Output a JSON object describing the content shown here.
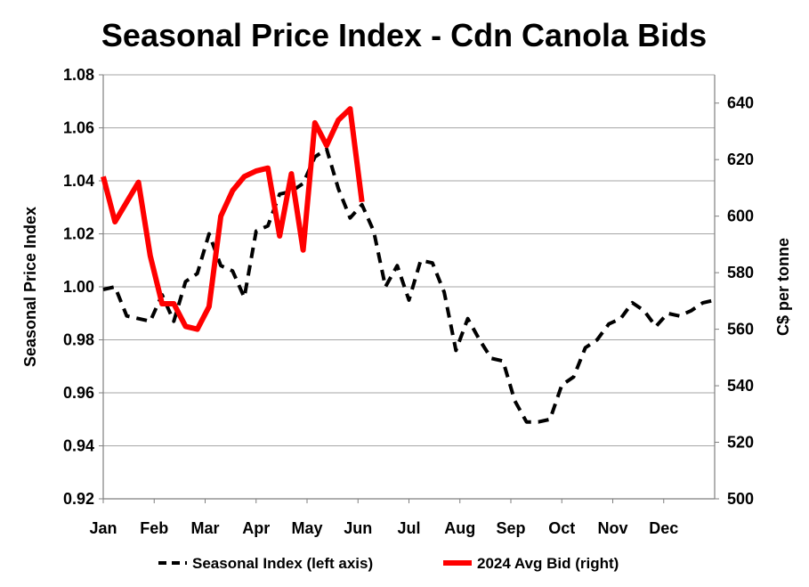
{
  "chart_data": {
    "type": "line",
    "title": "Seasonal Price Index - Cdn Canola Bids",
    "xlabel": "",
    "ylabel": "Seasonal Price Index",
    "y2label": "C$ per tonne",
    "ylim": [
      0.92,
      1.08
    ],
    "yticks": [
      "0.92",
      "0.94",
      "0.96",
      "0.98",
      "1.00",
      "1.02",
      "1.04",
      "1.06",
      "1.08"
    ],
    "y2lim": [
      500,
      650
    ],
    "y2ticks": [
      "500",
      "520",
      "540",
      "560",
      "580",
      "600",
      "620",
      "640"
    ],
    "months": [
      "Jan",
      "Feb",
      "Mar",
      "Apr",
      "May",
      "Jun",
      "Jul",
      "Aug",
      "Sep",
      "Oct",
      "Nov",
      "Dec"
    ],
    "week_range": [
      1,
      53
    ],
    "grid": "horizontal",
    "legend_position": "bottom",
    "series": [
      {
        "name": "Seasonal Index (left axis)",
        "axis": "left",
        "color": "#000000",
        "style": "dashed",
        "x": [
          1,
          2,
          3,
          4,
          5,
          6,
          7,
          8,
          9,
          10,
          11,
          12,
          13,
          14,
          15,
          16,
          17,
          18,
          19,
          20,
          21,
          22,
          23,
          24,
          25,
          26,
          27,
          28,
          29,
          30,
          31,
          32,
          33,
          34,
          35,
          36,
          37,
          38,
          39,
          40,
          41,
          42,
          43,
          44,
          45,
          46,
          47,
          48,
          49,
          50,
          51,
          52,
          53
        ],
        "values": [
          0.999,
          1.0,
          0.989,
          0.988,
          0.987,
          0.997,
          0.987,
          1.002,
          1.005,
          1.02,
          1.008,
          1.006,
          0.996,
          1.021,
          1.023,
          1.035,
          1.036,
          1.039,
          1.049,
          1.052,
          1.037,
          1.026,
          1.031,
          1.021,
          1.0,
          1.008,
          0.995,
          1.01,
          1.009,
          0.998,
          0.976,
          0.988,
          0.98,
          0.973,
          0.972,
          0.957,
          0.949,
          0.949,
          0.95,
          0.963,
          0.966,
          0.977,
          0.98,
          0.986,
          0.988,
          0.994,
          0.991,
          0.985,
          0.99,
          0.989,
          0.991,
          0.994,
          0.995
        ]
      },
      {
        "name": "2024 Avg Bid (right)",
        "axis": "right",
        "color": "#ff0000",
        "style": "solid",
        "x": [
          1,
          2,
          3,
          4,
          5,
          6,
          7,
          8,
          9,
          10,
          11,
          12,
          13,
          14,
          15,
          16,
          17,
          18,
          19,
          20,
          21,
          22,
          23,
          24
        ],
        "values": [
          614,
          598,
          605,
          612,
          586,
          569,
          569,
          561,
          560,
          568,
          600,
          609,
          614,
          616,
          617,
          593,
          615,
          588,
          633,
          625,
          634,
          638,
          605,
          null
        ]
      }
    ]
  }
}
